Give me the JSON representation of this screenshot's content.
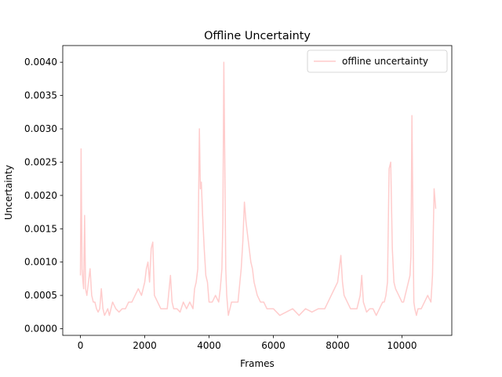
{
  "chart_data": {
    "type": "line",
    "title": "Offline Uncertainty",
    "xlabel": "Frames",
    "ylabel": "Uncertainty",
    "xlim": [
      -550,
      11550
    ],
    "ylim": [
      -0.0001,
      0.00425
    ],
    "xticks": [
      0,
      2000,
      4000,
      6000,
      8000,
      10000
    ],
    "xtick_labels": [
      "0",
      "2000",
      "4000",
      "6000",
      "8000",
      "10000"
    ],
    "yticks": [
      0.0,
      0.0005,
      0.001,
      0.0015,
      0.002,
      0.0025,
      0.003,
      0.0035,
      0.004
    ],
    "ytick_labels": [
      "0.0000",
      "0.0005",
      "0.0010",
      "0.0015",
      "0.0020",
      "0.0025",
      "0.0030",
      "0.0035",
      "0.0040"
    ],
    "grid": false,
    "legend": {
      "position": "top-right",
      "entries": [
        "offline uncertainty"
      ]
    },
    "series": [
      {
        "name": "offline uncertainty",
        "color": "#ffcccc",
        "x": [
          0,
          20,
          50,
          80,
          100,
          130,
          160,
          200,
          250,
          300,
          350,
          400,
          450,
          500,
          550,
          600,
          650,
          700,
          750,
          800,
          850,
          900,
          950,
          1000,
          1100,
          1200,
          1300,
          1400,
          1500,
          1600,
          1700,
          1800,
          1900,
          2000,
          2050,
          2100,
          2150,
          2200,
          2250,
          2300,
          2400,
          2500,
          2600,
          2700,
          2800,
          2850,
          2900,
          3000,
          3100,
          3200,
          3300,
          3400,
          3500,
          3550,
          3600,
          3650,
          3700,
          3730,
          3760,
          3800,
          3850,
          3900,
          3950,
          4000,
          4100,
          4200,
          4300,
          4350,
          4400,
          4430,
          4460,
          4490,
          4520,
          4550,
          4600,
          4650,
          4700,
          4800,
          4900,
          5000,
          5050,
          5100,
          5150,
          5200,
          5250,
          5300,
          5350,
          5400,
          5500,
          5600,
          5700,
          5800,
          5900,
          6000,
          6200,
          6400,
          6600,
          6800,
          7000,
          7200,
          7400,
          7600,
          7700,
          7800,
          7900,
          8000,
          8050,
          8100,
          8150,
          8200,
          8300,
          8400,
          8500,
          8600,
          8700,
          8750,
          8800,
          8900,
          9000,
          9100,
          9200,
          9300,
          9400,
          9450,
          9500,
          9550,
          9600,
          9650,
          9700,
          9750,
          9800,
          9900,
          10000,
          10050,
          10100,
          10150,
          10200,
          10250,
          10280,
          10310,
          10340,
          10370,
          10400,
          10450,
          10500,
          10600,
          10700,
          10800,
          10900,
          10950,
          11000,
          11050
        ],
        "values": [
          0.0008,
          0.0027,
          0.0009,
          0.0007,
          0.0006,
          0.0017,
          0.0006,
          0.0005,
          0.0007,
          0.0009,
          0.0005,
          0.0004,
          0.0004,
          0.0003,
          0.00025,
          0.0003,
          0.0006,
          0.0003,
          0.0002,
          0.00025,
          0.0003,
          0.0002,
          0.0003,
          0.0004,
          0.0003,
          0.00025,
          0.0003,
          0.0003,
          0.0004,
          0.0004,
          0.0005,
          0.0006,
          0.0005,
          0.0007,
          0.0009,
          0.001,
          0.0007,
          0.0012,
          0.0013,
          0.0005,
          0.0004,
          0.0003,
          0.0003,
          0.0003,
          0.0008,
          0.0004,
          0.0003,
          0.0003,
          0.00025,
          0.0004,
          0.0003,
          0.0004,
          0.0003,
          0.0006,
          0.0007,
          0.0009,
          0.003,
          0.0021,
          0.0022,
          0.0017,
          0.0012,
          0.0008,
          0.0007,
          0.0004,
          0.0004,
          0.0005,
          0.0004,
          0.0006,
          0.0009,
          0.0016,
          0.004,
          0.0025,
          0.0009,
          0.0005,
          0.0002,
          0.0003,
          0.0004,
          0.0004,
          0.0004,
          0.0009,
          0.0013,
          0.0019,
          0.0016,
          0.0014,
          0.0012,
          0.001,
          0.0009,
          0.0007,
          0.0005,
          0.0004,
          0.0004,
          0.0003,
          0.0003,
          0.0003,
          0.0002,
          0.00025,
          0.0003,
          0.0002,
          0.0003,
          0.00025,
          0.0003,
          0.0003,
          0.0004,
          0.0005,
          0.0006,
          0.0007,
          0.0009,
          0.0011,
          0.0007,
          0.0005,
          0.0004,
          0.0003,
          0.0003,
          0.0003,
          0.0005,
          0.0008,
          0.0004,
          0.00025,
          0.0003,
          0.0003,
          0.0002,
          0.0003,
          0.0004,
          0.0004,
          0.0005,
          0.0007,
          0.0024,
          0.0025,
          0.0012,
          0.0007,
          0.0006,
          0.0005,
          0.0004,
          0.0004,
          0.0005,
          0.0006,
          0.0007,
          0.0008,
          0.0011,
          0.0032,
          0.0017,
          0.0004,
          0.0003,
          0.0002,
          0.0003,
          0.0003,
          0.0004,
          0.0005,
          0.0004,
          0.0008,
          0.0021,
          0.0018
        ]
      }
    ]
  }
}
